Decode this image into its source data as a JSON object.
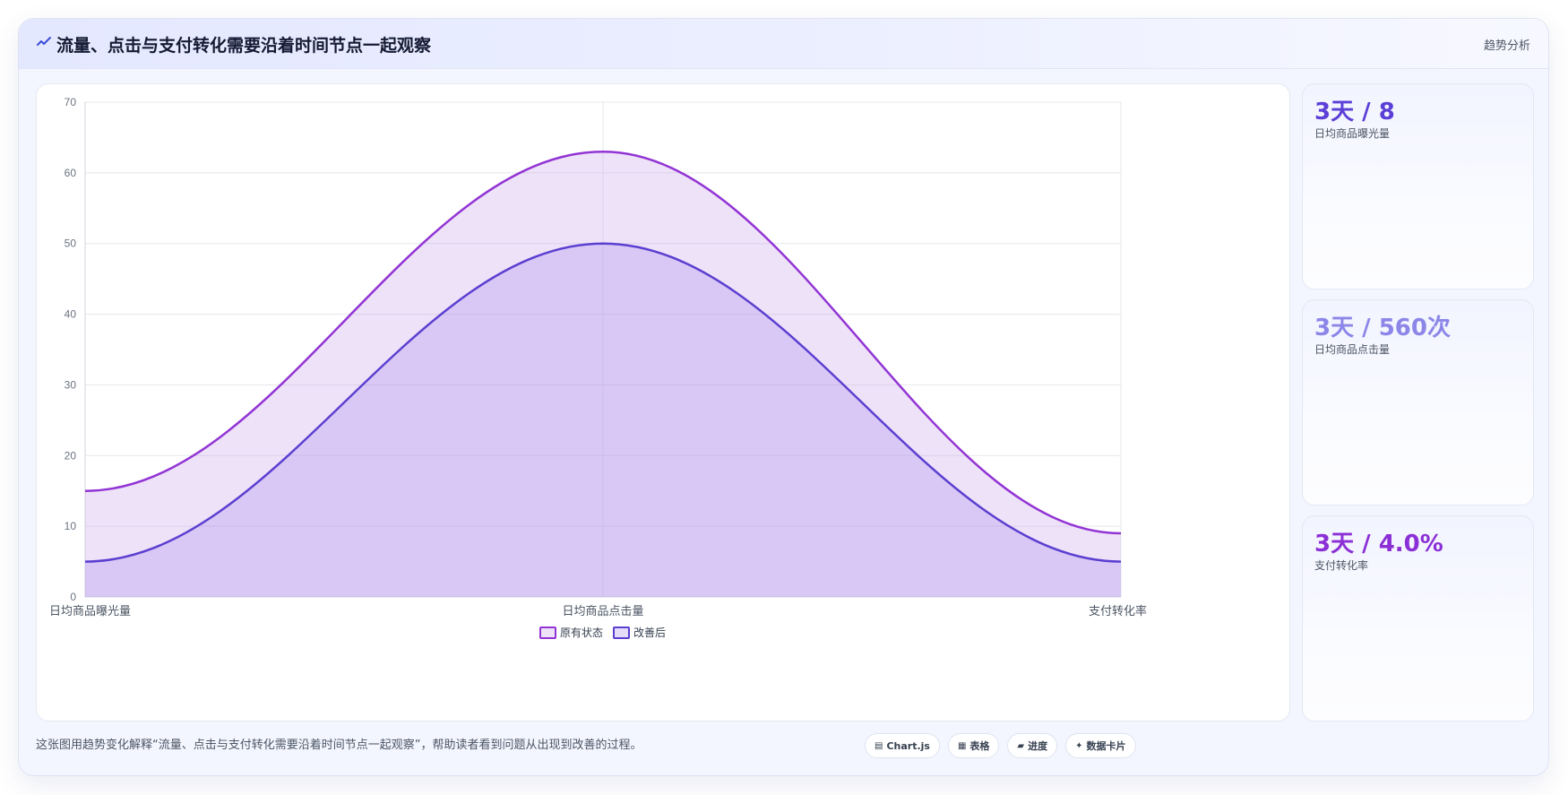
{
  "header": {
    "icon": "trend-line-icon",
    "title": "流量、点击与支付转化需要沿着时间节点一起观察",
    "tag": "趋势分析"
  },
  "stats": [
    {
      "value": "3天 / 8",
      "label": "日均商品曝光量",
      "color": "#5b3fd6"
    },
    {
      "value": "3天 / 560次",
      "label": "日均商品点击量",
      "color": "#8b86e8"
    },
    {
      "value": "3天 / 4.0%",
      "label": "支付转化率",
      "color": "#8b2fd6"
    }
  ],
  "footer": {
    "caption": "这张图用趋势变化解释“流量、点击与支付转化需要沿着时间节点一起观察”，帮助读者看到问题从出现到改善的过程。",
    "badges": [
      {
        "icon": "chart-icon",
        "glyph": "▤",
        "label": "Chart.js"
      },
      {
        "icon": "table-icon",
        "glyph": "▦",
        "label": "表格"
      },
      {
        "icon": "progress-icon",
        "glyph": "▰",
        "label": "进度"
      },
      {
        "icon": "sparkle-icon",
        "glyph": "✦",
        "label": "数据卡片"
      }
    ]
  },
  "chart_data": {
    "type": "area",
    "categories": [
      "日均商品曝光量",
      "日均商品点击量",
      "支付转化率"
    ],
    "series": [
      {
        "name": "原有状态",
        "values": [
          15,
          63,
          9
        ],
        "color": "#9234d4",
        "fill": "rgba(200, 160, 235, 0.30)"
      },
      {
        "name": "改善后",
        "values": [
          5,
          50,
          5
        ],
        "color": "#5a3fd0",
        "fill": "rgba(170, 140, 235, 0.30)"
      }
    ],
    "ylim": [
      0,
      70
    ],
    "yticks": [
      0,
      10,
      20,
      30,
      40,
      50,
      60,
      70
    ],
    "grid": true,
    "legend": "bottom-center",
    "smooth": true
  }
}
